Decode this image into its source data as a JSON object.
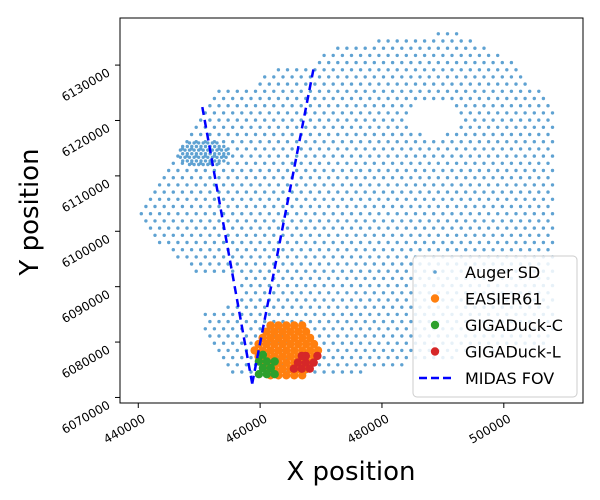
{
  "chart_data": {
    "type": "scatter",
    "xlabel": "X position",
    "ylabel": "Y position",
    "xlim": [
      437000,
      513000
    ],
    "ylim": [
      6069000,
      6138500
    ],
    "x_ticks": [
      440000,
      460000,
      480000,
      500000
    ],
    "y_ticks": [
      6070000,
      6080000,
      6090000,
      6100000,
      6110000,
      6120000,
      6130000
    ],
    "grid": false,
    "legend_position": "lower-right",
    "series": [
      {
        "name": "Auger SD",
        "marker": "point",
        "color": "#5fa2d2"
      },
      {
        "name": "EASIER61",
        "marker": "circle",
        "color": "#ff7f0e"
      },
      {
        "name": "GIGADuck-C",
        "marker": "circle",
        "color": "#2ca02c"
      },
      {
        "name": "GIGADuck-L",
        "marker": "circle",
        "color": "#d62728"
      },
      {
        "name": "MIDAS FOV",
        "marker": "dashed-line",
        "color": "#0000ff",
        "lines": [
          {
            "x": [
              458700,
              450500
            ],
            "y": [
              6072500,
              6122500
            ]
          },
          {
            "x": [
              458700,
              468800
            ],
            "y": [
              6072500,
              6129500
            ]
          }
        ]
      }
    ],
    "easier61": {
      "center": [
        464300,
        6078500
      ],
      "rings": 4,
      "spacing": 1300
    },
    "gigaduck_c": [
      [
        459800,
        6076500
      ],
      [
        461100,
        6076500
      ],
      [
        462400,
        6076500
      ],
      [
        460450,
        6075300
      ],
      [
        461750,
        6075300
      ],
      [
        461100,
        6074200
      ],
      [
        462400,
        6074200
      ],
      [
        459800,
        6074200
      ],
      [
        460450,
        6077700
      ]
    ],
    "gigaduck_l": [
      [
        467500,
        6076300
      ],
      [
        468800,
        6076300
      ],
      [
        466200,
        6076300
      ],
      [
        467500,
        6077500
      ],
      [
        468150,
        6075200
      ],
      [
        466850,
        6075200
      ],
      [
        469400,
        6077500
      ],
      [
        465550,
        6075200
      ],
      [
        466850,
        6077500
      ]
    ],
    "auger_region": {
      "polygon": [
        [
          440000,
          6102500
        ],
        [
          450000,
          6121000
        ],
        [
          453500,
          6126500
        ],
        [
          459000,
          6126500
        ],
        [
          460500,
          6129000
        ],
        [
          468000,
          6130000
        ],
        [
          472000,
          6133500
        ],
        [
          477000,
          6133500
        ],
        [
          479000,
          6135000
        ],
        [
          487000,
          6135000
        ],
        [
          489000,
          6136000
        ],
        [
          492000,
          6136000
        ],
        [
          496000,
          6134000
        ],
        [
          502000,
          6130000
        ],
        [
          508500,
          6122000
        ],
        [
          508500,
          6080000
        ],
        [
          470000,
          6073500
        ],
        [
          456000,
          6073500
        ],
        [
          451000,
          6081000
        ],
        [
          451000,
          6085000
        ],
        [
          457000,
          6087500
        ],
        [
          457000,
          6092000
        ],
        [
          450000,
          6092000
        ],
        [
          441000,
          6100000
        ]
      ],
      "spacing": 1500,
      "hole": {
        "center": [
          488500,
          6120500
        ],
        "radius_x": 3800,
        "radius_y": 3300
      },
      "dense_cluster": {
        "center": [
          450700,
          6114000
        ],
        "radius": 2600,
        "spacing": 750
      }
    }
  }
}
